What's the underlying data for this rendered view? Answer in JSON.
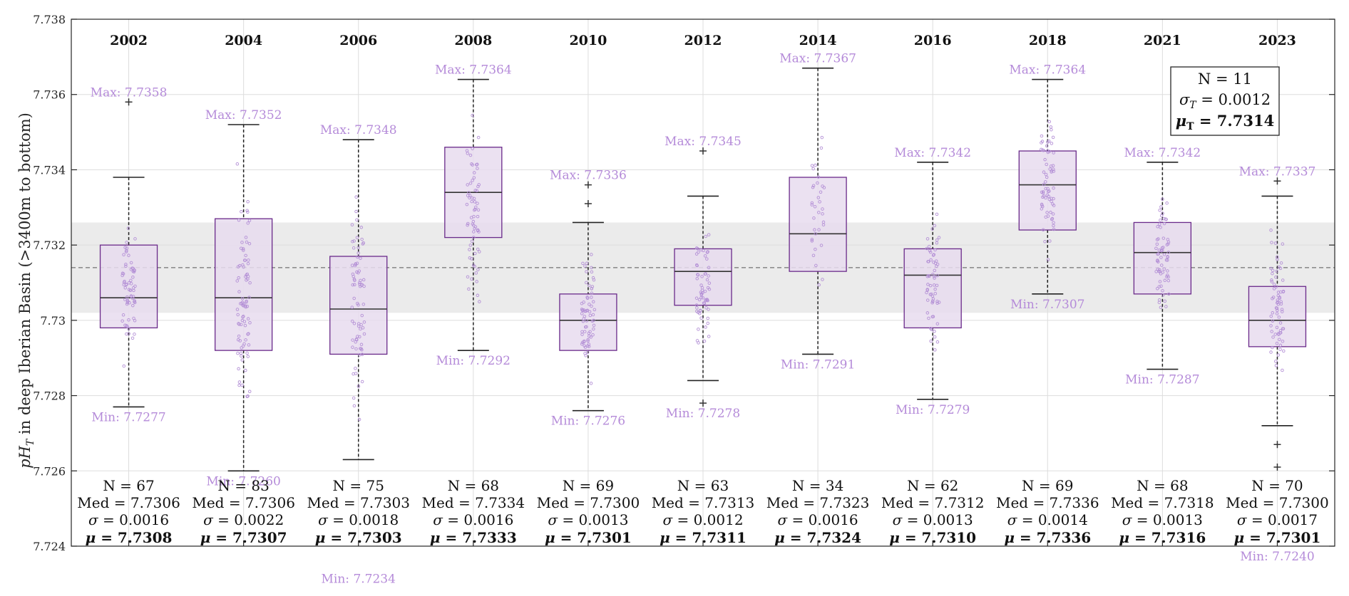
{
  "chart_data": {
    "type": "box",
    "ylabel_main": "pH",
    "ylabel_sub": "T",
    "ylabel_rest": " in deep Iberian Basin (>3400m to bottom)",
    "ylim": [
      7.724,
      7.738
    ],
    "yticks": [
      7.724,
      7.726,
      7.728,
      7.73,
      7.732,
      7.734,
      7.736,
      7.738
    ],
    "ytick_labels": [
      "7.724",
      "7.726",
      "7.728",
      "7.73",
      "7.732",
      "7.734",
      "7.736",
      "7.738"
    ],
    "grid": true,
    "overall": {
      "mean": 7.7314,
      "std": 0.0012,
      "band": [
        7.7302,
        7.7326
      ],
      "label_n": "N = 11",
      "label_sigma": "σ",
      "label_sigma_sub": "T",
      "label_sigma_val": " = 0.0012",
      "label_mu": "μ",
      "label_mu_sub": "T",
      "label_mu_val": " = 7.7314"
    },
    "groups": [
      {
        "year": "2002",
        "q1": 7.7298,
        "median": 7.7306,
        "q3": 7.732,
        "whisker_low": 7.7277,
        "whisker_high": 7.7338,
        "outliers": [
          7.7358
        ],
        "min": 7.7277,
        "max": 7.7358,
        "max_label": "Max: 7.7358",
        "min_label": "Min: 7.7277",
        "stat_n": "N = 67",
        "stat_med": "Med = 7.7306",
        "stat_sigma": "σ = 0.0016",
        "stat_mu": "μ = 7.7308"
      },
      {
        "year": "2004",
        "q1": 7.7292,
        "median": 7.7306,
        "q3": 7.7327,
        "whisker_low": 7.726,
        "whisker_high": 7.7352,
        "outliers": [],
        "min": 7.726,
        "max": 7.7352,
        "max_label": "Max: 7.7352",
        "min_label": "Min: 7.7260",
        "stat_n": "N = 83",
        "stat_med": "Med = 7.7306",
        "stat_sigma": "σ = 0.0022",
        "stat_mu": "μ = 7.7307"
      },
      {
        "year": "2006",
        "q1": 7.7291,
        "median": 7.7303,
        "q3": 7.7317,
        "whisker_low": 7.7263,
        "whisker_high": 7.7348,
        "outliers": [],
        "min": 7.7234,
        "max": 7.7348,
        "max_label": "Max: 7.7348",
        "min_label": "Min: 7.7234",
        "stat_n": "N = 75",
        "stat_med": "Med = 7.7303",
        "stat_sigma": "σ = 0.0018",
        "stat_mu": "μ = 7.7303"
      },
      {
        "year": "2008",
        "q1": 7.7322,
        "median": 7.7334,
        "q3": 7.7346,
        "whisker_low": 7.7292,
        "whisker_high": 7.7364,
        "outliers": [],
        "min": 7.7292,
        "max": 7.7364,
        "max_label": "Max: 7.7364",
        "min_label": "Min: 7.7292",
        "stat_n": "N = 68",
        "stat_med": "Med = 7.7334",
        "stat_sigma": "σ = 0.0016",
        "stat_mu": "μ = 7.7333"
      },
      {
        "year": "2010",
        "q1": 7.7292,
        "median": 7.73,
        "q3": 7.7307,
        "whisker_low": 7.7276,
        "whisker_high": 7.7326,
        "outliers": [
          7.7331,
          7.7336
        ],
        "min": 7.7276,
        "max": 7.7336,
        "max_label": "Max: 7.7336",
        "min_label": "Min: 7.7276",
        "stat_n": "N = 69",
        "stat_med": "Med = 7.7300",
        "stat_sigma": "σ = 0.0013",
        "stat_mu": "μ = 7.7301"
      },
      {
        "year": "2012",
        "q1": 7.7304,
        "median": 7.7313,
        "q3": 7.7319,
        "whisker_low": 7.7284,
        "whisker_high": 7.7333,
        "outliers": [
          7.7278,
          7.7345
        ],
        "min": 7.7278,
        "max": 7.7345,
        "max_label": "Max: 7.7345",
        "min_label": "Min: 7.7278",
        "stat_n": "N = 63",
        "stat_med": "Med = 7.7313",
        "stat_sigma": "σ = 0.0012",
        "stat_mu": "μ = 7.7311"
      },
      {
        "year": "2014",
        "q1": 7.7313,
        "median": 7.7323,
        "q3": 7.7338,
        "whisker_low": 7.7291,
        "whisker_high": 7.7367,
        "outliers": [],
        "min": 7.7291,
        "max": 7.7367,
        "max_label": "Max: 7.7367",
        "min_label": "Min: 7.7291",
        "stat_n": "N = 34",
        "stat_med": "Med = 7.7323",
        "stat_sigma": "σ = 0.0016",
        "stat_mu": "μ = 7.7324"
      },
      {
        "year": "2016",
        "q1": 7.7298,
        "median": 7.7312,
        "q3": 7.7319,
        "whisker_low": 7.7279,
        "whisker_high": 7.7342,
        "outliers": [],
        "min": 7.7279,
        "max": 7.7342,
        "max_label": "Max: 7.7342",
        "min_label": "Min: 7.7279",
        "stat_n": "N = 62",
        "stat_med": "Med = 7.7312",
        "stat_sigma": "σ = 0.0013",
        "stat_mu": "μ = 7.7310"
      },
      {
        "year": "2018",
        "q1": 7.7324,
        "median": 7.7336,
        "q3": 7.7345,
        "whisker_low": 7.7307,
        "whisker_high": 7.7364,
        "outliers": [],
        "min": 7.7307,
        "max": 7.7364,
        "max_label": "Max: 7.7364",
        "min_label": "Min: 7.7307",
        "stat_n": "N = 69",
        "stat_med": "Med = 7.7336",
        "stat_sigma": "σ = 0.0014",
        "stat_mu": "μ = 7.7336"
      },
      {
        "year": "2021",
        "q1": 7.7307,
        "median": 7.7318,
        "q3": 7.7326,
        "whisker_low": 7.7287,
        "whisker_high": 7.7342,
        "outliers": [],
        "min": 7.7287,
        "max": 7.7342,
        "max_label": "Max: 7.7342",
        "min_label": "Min: 7.7287",
        "stat_n": "N = 68",
        "stat_med": "Med = 7.7318",
        "stat_sigma": "σ = 0.0013",
        "stat_mu": "μ = 7.7316"
      },
      {
        "year": "2023",
        "q1": 7.7293,
        "median": 7.73,
        "q3": 7.7309,
        "whisker_low": 7.7272,
        "whisker_high": 7.7333,
        "outliers": [
          7.7261,
          7.7267,
          7.7337
        ],
        "min": 7.724,
        "max": 7.7337,
        "max_label": "Max: 7.7337",
        "min_label": "Min: 7.7240",
        "stat_n": "N = 70",
        "stat_med": "Med = 7.7300",
        "stat_sigma": "σ = 0.0017",
        "stat_mu": "μ = 7.7301"
      }
    ]
  },
  "colors": {
    "box_fill": "#e7dcee",
    "box_edge": "#6a2a8a",
    "point": "#b490d6",
    "label": "#b58bd9",
    "band": "#ebebeb",
    "grid": "#dddddd",
    "axis": "#262626"
  }
}
